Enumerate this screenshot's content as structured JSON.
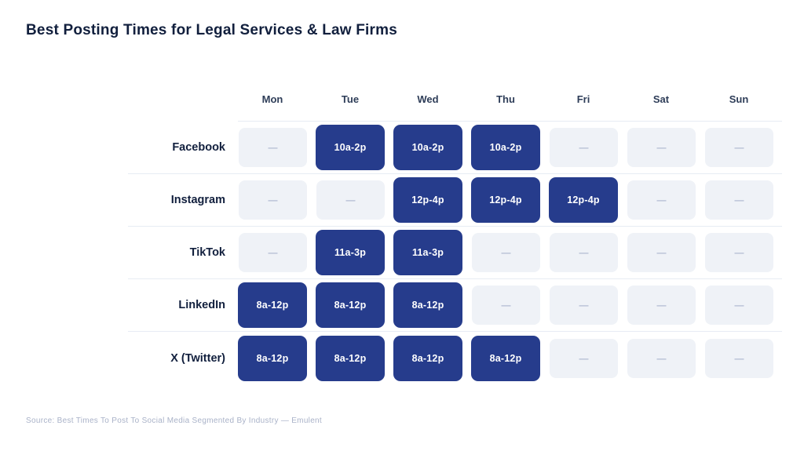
{
  "title": "Best Posting Times for Legal Services & Law Firms",
  "source": "Source: Best Times To Post To Social Media Segmented By Industry — Emulent",
  "colors": {
    "active_bg": "#263c8c",
    "active_text": "#ffffff",
    "empty_bg": "#eff2f7",
    "empty_dash": "#b0bad1",
    "separator": "#e7ecf4",
    "title_text": "#111f3d",
    "header_text": "#2e3d58",
    "source_text": "#a9b2c8"
  },
  "chart_data": {
    "type": "heatmap",
    "title": "Best Posting Times for Legal Services & Law Firms",
    "columns": [
      "Mon",
      "Tue",
      "Wed",
      "Thu",
      "Fri",
      "Sat",
      "Sun"
    ],
    "empty_marker": "—",
    "rows": [
      {
        "platform": "Facebook",
        "times": [
          null,
          "10a-2p",
          "10a-2p",
          "10a-2p",
          null,
          null,
          null
        ]
      },
      {
        "platform": "Instagram",
        "times": [
          null,
          null,
          "12p-4p",
          "12p-4p",
          "12p-4p",
          null,
          null
        ]
      },
      {
        "platform": "TikTok",
        "times": [
          null,
          "11a-3p",
          "11a-3p",
          null,
          null,
          null,
          null
        ]
      },
      {
        "platform": "LinkedIn",
        "times": [
          "8a-12p",
          "8a-12p",
          "8a-12p",
          null,
          null,
          null,
          null
        ]
      },
      {
        "platform": "X (Twitter)",
        "times": [
          "8a-12p",
          "8a-12p",
          "8a-12p",
          "8a-12p",
          null,
          null,
          null
        ]
      }
    ]
  }
}
